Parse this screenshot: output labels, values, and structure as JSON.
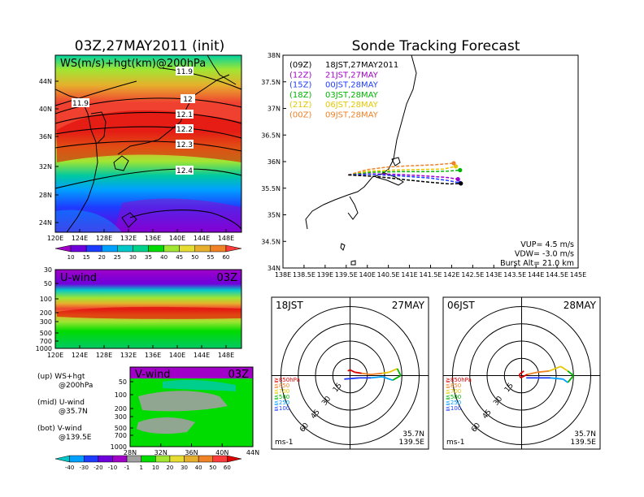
{
  "titles": {
    "left": "03Z,27MAY2011 (init)",
    "right": "Sonde Tracking Forecast"
  },
  "map_panel": {
    "label": "WS(m/s)+hgt(km)@200hPa",
    "lat_ticks": [
      "44N",
      "40N",
      "36N",
      "32N",
      "28N",
      "24N"
    ],
    "lon_ticks": [
      "120E",
      "124E",
      "128E",
      "132E",
      "136E",
      "140E",
      "144E",
      "148E"
    ],
    "contour_labels": [
      "11.9",
      "11.9",
      "12",
      "12.1",
      "12.2",
      "12.3",
      "12.4"
    ],
    "colorbar_labels": [
      "10",
      "15",
      "20",
      "25",
      "30",
      "35",
      "40",
      "45",
      "50",
      "55",
      "60"
    ],
    "colorbar_colors": [
      "#a000c8",
      "#6e00dc",
      "#1e3cff",
      "#00a0ff",
      "#00c8c8",
      "#00d28c",
      "#00dc00",
      "#a0e632",
      "#e6dc32",
      "#e6af2d",
      "#f08228",
      "#fa3c3c"
    ]
  },
  "u_panel": {
    "label": "U-wind",
    "time": "03Z",
    "p_ticks": [
      "30",
      "50",
      "100",
      "200",
      "300",
      "500",
      "700",
      "1000"
    ],
    "lon_ticks": [
      "120E",
      "124E",
      "128E",
      "132E",
      "136E",
      "140E",
      "144E",
      "148E"
    ]
  },
  "v_panel": {
    "label": "V-wind",
    "time": "03Z",
    "p_ticks": [
      "50",
      "100",
      "200",
      "300",
      "500",
      "700",
      "1000"
    ],
    "lat_ticks": [
      "28N",
      "32N",
      "36N",
      "40N",
      "44N"
    ]
  },
  "notes": [
    {
      "a": "(up) WS+hgt",
      "b": "@200hPa"
    },
    {
      "a": "(mid) U-wind",
      "b": "@35.7N"
    },
    {
      "a": "(bot) V-wind",
      "b": "@139.5E"
    }
  ],
  "wind_colorbar": {
    "labels": [
      "-40",
      "-30",
      "-20",
      "-10",
      "-1",
      "1",
      "10",
      "20",
      "30",
      "40",
      "50",
      "60"
    ],
    "colors": [
      "#00c8c8",
      "#00a0ff",
      "#1e3cff",
      "#6e00dc",
      "#a000c8",
      "#a0a0a0",
      "#00dc00",
      "#a0e632",
      "#e6dc32",
      "#e6af2d",
      "#f08228",
      "#fa3c3c",
      "#dc0000"
    ]
  },
  "track_panel": {
    "lat_ticks": [
      "38N",
      "37.5N",
      "37N",
      "36.5N",
      "36N",
      "35.5N",
      "35N",
      "34.5N",
      "34N"
    ],
    "lon_ticks": [
      "138E",
      "138.5E",
      "139E",
      "139.5E",
      "140E",
      "140.5E",
      "141E",
      "141.5E",
      "142E",
      "142.5E",
      "143E",
      "143.5E",
      "144E",
      "144.5E",
      "145E"
    ],
    "legend": [
      {
        "code": "(09Z)",
        "text": "18JST,27MAY2011",
        "color": "#000000"
      },
      {
        "code": "(12Z)",
        "text": "21JST,27MAY",
        "color": "#a000c8"
      },
      {
        "code": "(15Z)",
        "text": "00JST,28MAY",
        "color": "#1e3cff"
      },
      {
        "code": "(18Z)",
        "text": "03JST,28MAY",
        "color": "#00b400"
      },
      {
        "code": "(21Z)",
        "text": "06JST,28MAY",
        "color": "#e6c800"
      },
      {
        "code": "(00Z)",
        "text": "09JST,28MAY",
        "color": "#f08228"
      }
    ],
    "params": [
      "VUP= 4.5 m/s",
      "VDW= -3.0 m/s",
      "Burst Alt= 21.0 km"
    ],
    "tracks": [
      {
        "color": "#e6c800",
        "points": [
          [
            139.55,
            35.75
          ],
          [
            140.0,
            35.82
          ],
          [
            140.6,
            35.84
          ],
          [
            141.2,
            35.85
          ],
          [
            141.8,
            35.86
          ],
          [
            142.1,
            35.91
          ]
        ]
      },
      {
        "color": "#f08228",
        "points": [
          [
            139.55,
            35.75
          ],
          [
            140.0,
            35.85
          ],
          [
            140.5,
            35.9
          ],
          [
            141.0,
            35.92
          ],
          [
            141.6,
            35.94
          ],
          [
            142.05,
            35.97
          ]
        ]
      },
      {
        "color": "#00b400",
        "points": [
          [
            139.55,
            35.75
          ],
          [
            140.1,
            35.8
          ],
          [
            140.7,
            35.81
          ],
          [
            141.4,
            35.81
          ],
          [
            141.9,
            35.82
          ],
          [
            142.2,
            35.84
          ]
        ]
      },
      {
        "color": "#a000c8",
        "points": [
          [
            139.55,
            35.75
          ],
          [
            140.1,
            35.77
          ],
          [
            140.7,
            35.76
          ],
          [
            141.4,
            35.73
          ],
          [
            141.9,
            35.7
          ],
          [
            142.15,
            35.67
          ]
        ]
      },
      {
        "color": "#1e3cff",
        "points": [
          [
            139.55,
            35.75
          ],
          [
            140.1,
            35.76
          ],
          [
            140.8,
            35.73
          ],
          [
            141.5,
            35.69
          ],
          [
            141.95,
            35.64
          ],
          [
            142.2,
            35.6
          ]
        ]
      },
      {
        "color": "#000000",
        "points": [
          [
            139.55,
            35.75
          ],
          [
            140.2,
            35.72
          ],
          [
            140.9,
            35.66
          ],
          [
            141.5,
            35.61
          ],
          [
            141.95,
            35.58
          ],
          [
            142.22,
            35.59
          ]
        ]
      }
    ]
  },
  "hodo_panels": [
    {
      "time": "18JST",
      "date": "27MAY",
      "rings": [
        "15",
        "30",
        "45",
        "60"
      ],
      "levels": [
        "≧850hPa",
        "≦850",
        "≦700",
        "≦500",
        "≦250",
        "≦100"
      ],
      "units": "ms-1",
      "lat": "35.7N",
      "lon": "139.5E"
    },
    {
      "time": "06JST",
      "date": "28MAY",
      "rings": [
        "15",
        "30",
        "45",
        "60"
      ],
      "levels": [
        "≧850hPa",
        "≦850",
        "≦700",
        "≦500",
        "≦250",
        "≦100"
      ],
      "units": "ms-1",
      "lat": "35.7N",
      "lon": "139.5E"
    }
  ],
  "level_colors": [
    "#dc0000",
    "#f08228",
    "#e6c800",
    "#00b400",
    "#00a0ff",
    "#1e3cff"
  ],
  "chart_data": [
    {
      "type": "heatmap",
      "title": "WS(m/s)+hgt(km)@200hPa",
      "xlim": [
        "120E",
        "150E"
      ],
      "ylim": [
        "22N",
        "47N"
      ],
      "contour_values_km": [
        11.9,
        12,
        12.1,
        12.2,
        12.3,
        12.4
      ],
      "colorbar": [
        "10",
        "15",
        "20",
        "25",
        "30",
        "35",
        "40",
        "45",
        "50",
        "55",
        "60"
      ]
    },
    {
      "type": "line",
      "title": "Sonde Tracking Forecast",
      "xlim": [
        138,
        145
      ],
      "ylim": [
        34,
        38
      ],
      "series": [
        {
          "name": "(09Z) 18JST,27MAY2011",
          "x": [
            139.55,
            140.2,
            140.9,
            141.5,
            141.95,
            142.22
          ],
          "y": [
            35.75,
            35.72,
            35.66,
            35.61,
            35.58,
            35.59
          ]
        },
        {
          "name": "(12Z) 21JST,27MAY",
          "x": [
            139.55,
            140.1,
            140.7,
            141.4,
            141.9,
            142.15
          ],
          "y": [
            35.75,
            35.77,
            35.76,
            35.73,
            35.7,
            35.67
          ]
        },
        {
          "name": "(15Z) 00JST,28MAY",
          "x": [
            139.55,
            140.1,
            140.8,
            141.5,
            141.95,
            142.2
          ],
          "y": [
            35.75,
            35.76,
            35.73,
            35.69,
            35.64,
            35.6
          ]
        },
        {
          "name": "(18Z) 03JST,28MAY",
          "x": [
            139.55,
            140.1,
            140.7,
            141.4,
            141.9,
            142.2
          ],
          "y": [
            35.75,
            35.8,
            35.81,
            35.81,
            35.82,
            35.84
          ]
        },
        {
          "name": "(21Z) 06JST,28MAY",
          "x": [
            139.55,
            140.0,
            140.6,
            141.2,
            141.8,
            142.1
          ],
          "y": [
            35.75,
            35.82,
            35.84,
            35.85,
            35.86,
            35.91
          ]
        },
        {
          "name": "(00Z) 09JST,28MAY",
          "x": [
            139.55,
            140.0,
            140.5,
            141.0,
            141.6,
            142.05
          ],
          "y": [
            35.75,
            35.85,
            35.9,
            35.92,
            35.94,
            35.97
          ]
        }
      ]
    },
    {
      "type": "heatmap",
      "title": "U-wind",
      "y_ticks_hPa": [
        30,
        50,
        100,
        200,
        300,
        500,
        700,
        1000
      ],
      "xlim": [
        "120E",
        "150E"
      ]
    },
    {
      "type": "heatmap",
      "title": "V-wind",
      "y_ticks_hPa": [
        50,
        100,
        200,
        300,
        500,
        700,
        1000
      ],
      "xlim": [
        "28N",
        "44N"
      ]
    },
    {
      "type": "line",
      "title": "18JST 27MAY",
      "rings_ms": [
        15,
        30,
        45,
        60
      ],
      "hodograph_uv": [
        [
          -2,
          4
        ],
        [
          0,
          5
        ],
        [
          4,
          3
        ],
        [
          10,
          2
        ],
        [
          18,
          1
        ],
        [
          28,
          2
        ],
        [
          34,
          3
        ],
        [
          41,
          6
        ],
        [
          44,
          0
        ],
        [
          37,
          -4
        ],
        [
          28,
          -1
        ],
        [
          18,
          -2
        ],
        [
          8,
          -2
        ],
        [
          -5,
          -3
        ]
      ]
    },
    {
      "type": "line",
      "title": "06JST 28MAY",
      "rings_ms": [
        15,
        30,
        45,
        60
      ],
      "hodograph_uv": [
        [
          2,
          4
        ],
        [
          -2,
          1
        ],
        [
          -1,
          -2
        ],
        [
          5,
          1
        ],
        [
          14,
          3
        ],
        [
          24,
          4
        ],
        [
          34,
          8
        ],
        [
          40,
          4
        ],
        [
          45,
          0
        ],
        [
          40,
          -6
        ],
        [
          36,
          -3
        ],
        [
          25,
          -2
        ],
        [
          14,
          -2
        ],
        [
          4,
          -2
        ]
      ]
    }
  ]
}
